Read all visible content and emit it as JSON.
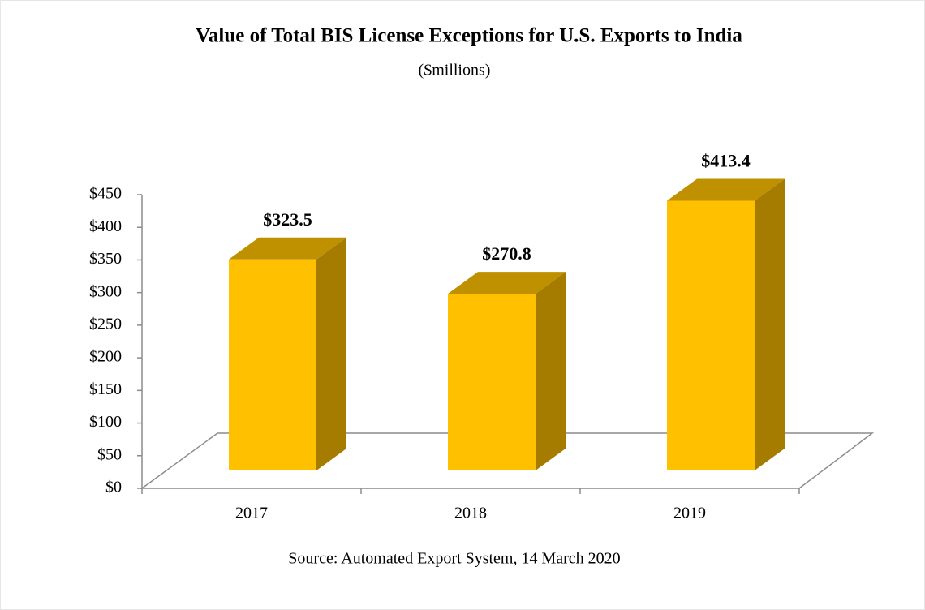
{
  "chart_data": {
    "type": "bar3d",
    "title": "Value of Total BIS License Exceptions for U.S. Exports to India",
    "subtitle": "($millions)",
    "categories": [
      "2017",
      "2018",
      "2019"
    ],
    "values": [
      323.5,
      270.8,
      413.4
    ],
    "value_labels": [
      "$323.5",
      "$270.8",
      "$413.4"
    ],
    "color": "#FFC000",
    "ylim": [
      0,
      450
    ],
    "yticks": [
      {
        "value": 0,
        "label": "$0"
      },
      {
        "value": 50,
        "label": "$50"
      },
      {
        "value": 100,
        "label": "$100"
      },
      {
        "value": 150,
        "label": "$150"
      },
      {
        "value": 200,
        "label": "$200"
      },
      {
        "value": 250,
        "label": "$250"
      },
      {
        "value": 300,
        "label": "$300"
      },
      {
        "value": 350,
        "label": "$350"
      },
      {
        "value": 400,
        "label": "$400"
      },
      {
        "value": 450,
        "label": "$450"
      }
    ],
    "source": "Source: Automated Export System, 14 March 2020"
  }
}
